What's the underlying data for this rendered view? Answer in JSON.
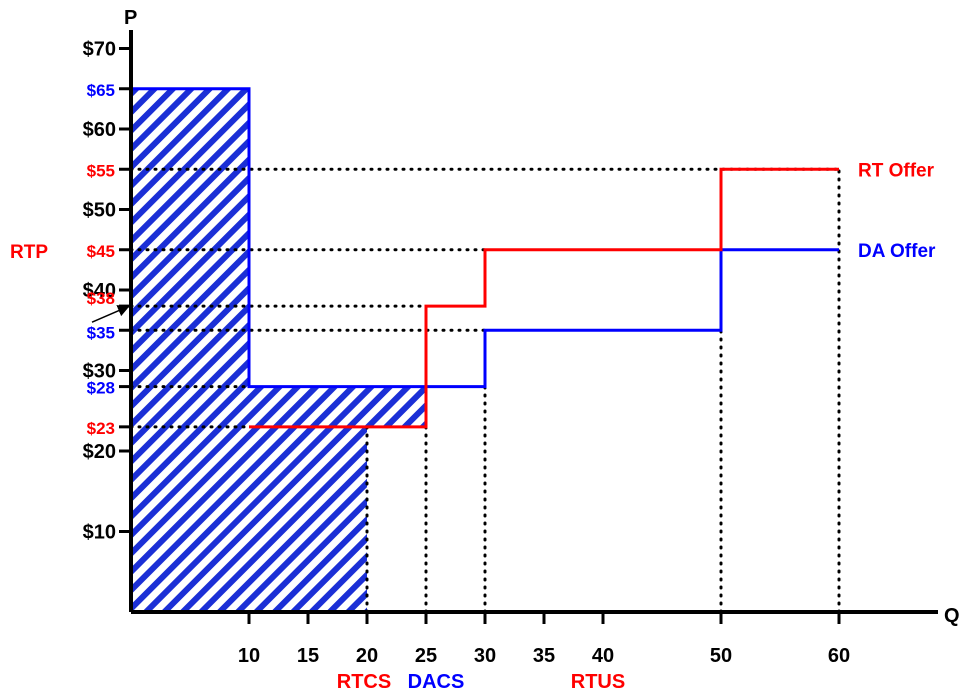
{
  "chart_data": {
    "type": "line",
    "xlabel": "Q",
    "ylabel": "P",
    "xlim": [
      0,
      65
    ],
    "ylim": [
      0,
      75
    ],
    "x_ticks": [
      10,
      15,
      20,
      25,
      30,
      35,
      40,
      50,
      60
    ],
    "x_tick_labels": [
      "10",
      "15",
      "20",
      "25",
      "30",
      "35",
      "40",
      "50",
      "60"
    ],
    "y_ticks": [
      10,
      20,
      30,
      40,
      50,
      60,
      70
    ],
    "y_tick_labels": [
      "$10",
      "$20",
      "$30",
      "$40",
      "$50",
      "$60",
      "$70"
    ],
    "price_markers": [
      {
        "value": 65,
        "label": "$65",
        "color": "#0000ff"
      },
      {
        "value": 55,
        "label": "$55",
        "color": "#ff0000"
      },
      {
        "value": 45,
        "label": "$45",
        "color": "#ff0000"
      },
      {
        "value": 38,
        "label": "$38",
        "color": "#ff0000"
      },
      {
        "value": 35,
        "label": "$35",
        "color": "#0000ff"
      },
      {
        "value": 28,
        "label": "$28",
        "color": "#0000ff"
      },
      {
        "value": 23,
        "label": "$23",
        "color": "#ff0000"
      }
    ],
    "series": [
      {
        "name": "RT Offer",
        "color": "#ff0000",
        "step_points": [
          [
            10,
            23
          ],
          [
            25,
            23
          ],
          [
            25,
            38
          ],
          [
            30,
            38
          ],
          [
            30,
            45
          ],
          [
            50,
            45
          ],
          [
            50,
            55
          ],
          [
            60,
            55
          ]
        ]
      },
      {
        "name": "DA Offer",
        "color": "#0000ff",
        "step_points": [
          [
            0,
            65
          ],
          [
            10,
            65
          ],
          [
            10,
            28
          ],
          [
            30,
            28
          ],
          [
            30,
            35
          ],
          [
            50,
            35
          ],
          [
            50,
            45
          ],
          [
            60,
            45
          ]
        ]
      }
    ],
    "horizontal_guides": [
      {
        "y": 55,
        "x_to": 60
      },
      {
        "y": 45,
        "x_to": 30
      },
      {
        "y": 38,
        "x_to": 25
      },
      {
        "y": 35,
        "x_to": 30
      },
      {
        "y": 28,
        "x_to": 10
      },
      {
        "y": 23,
        "x_to": 10
      }
    ],
    "vertical_guides": [
      {
        "x": 20,
        "y_to": 23
      },
      {
        "x": 25,
        "y_to": 23
      },
      {
        "x": 30,
        "y_to": 28
      },
      {
        "x": 50,
        "y_to": 35
      },
      {
        "x": 60,
        "y_to": 55
      }
    ],
    "hatched_regions": [
      {
        "x0": 0,
        "x1": 10,
        "y0": 0,
        "y1": 65
      },
      {
        "x0": 10,
        "x1": 20,
        "y0": 0,
        "y1": 23
      },
      {
        "x0": 10,
        "x1": 25,
        "y0": 23,
        "y1": 28
      }
    ],
    "annotations": [
      {
        "text": "RTP",
        "color": "#ff0000",
        "points_to_y": 38
      },
      {
        "text": "RTCS",
        "color": "#ff0000",
        "at_x": 20
      },
      {
        "text": "DACS",
        "color": "#0000ff",
        "at_x": 25
      },
      {
        "text": "RTUS",
        "color": "#ff0000",
        "at_x": 40
      }
    ],
    "legend": [
      {
        "text": "RT Offer",
        "color": "#ff0000"
      },
      {
        "text": "DA Offer",
        "color": "#0000ff"
      }
    ],
    "grid": false
  }
}
